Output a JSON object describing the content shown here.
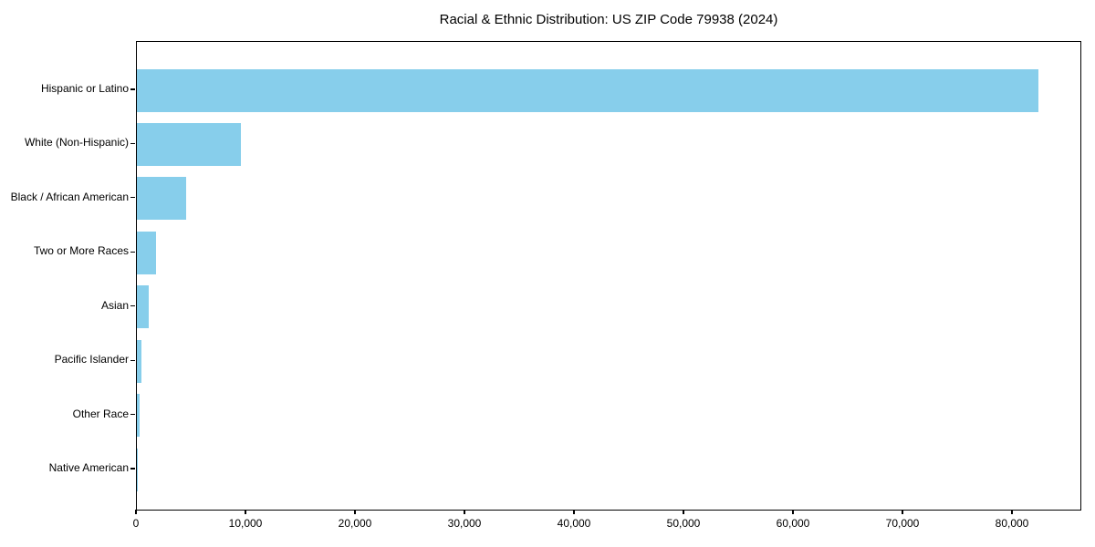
{
  "title": "Racial & Ethnic Distribution: US ZIP Code 79938 (2024)",
  "colors": {
    "bar": "#87ceeb",
    "axis": "#000000",
    "background": "#ffffff",
    "text": "#000000"
  },
  "chart_data": {
    "type": "bar",
    "orientation": "horizontal",
    "title": "Racial & Ethnic Distribution: US ZIP Code 79938 (2024)",
    "categories": [
      "Hispanic or Latino",
      "White (Non-Hispanic)",
      "Black / African American",
      "Two or More Races",
      "Asian",
      "Pacific Islander",
      "Other Race",
      "Native American"
    ],
    "values": [
      82300,
      9500,
      4500,
      1750,
      1050,
      400,
      250,
      50
    ],
    "xlabel": "",
    "ylabel": "",
    "xlim": [
      0,
      86333
    ],
    "xticks": [
      0,
      10000,
      20000,
      30000,
      40000,
      50000,
      60000,
      70000,
      80000
    ],
    "xtick_labels": [
      "0",
      "10,000",
      "20,000",
      "30,000",
      "40,000",
      "50,000",
      "60,000",
      "70,000",
      "80,000"
    ],
    "grid": false,
    "legend": false,
    "bar_color": "#87ceeb"
  }
}
